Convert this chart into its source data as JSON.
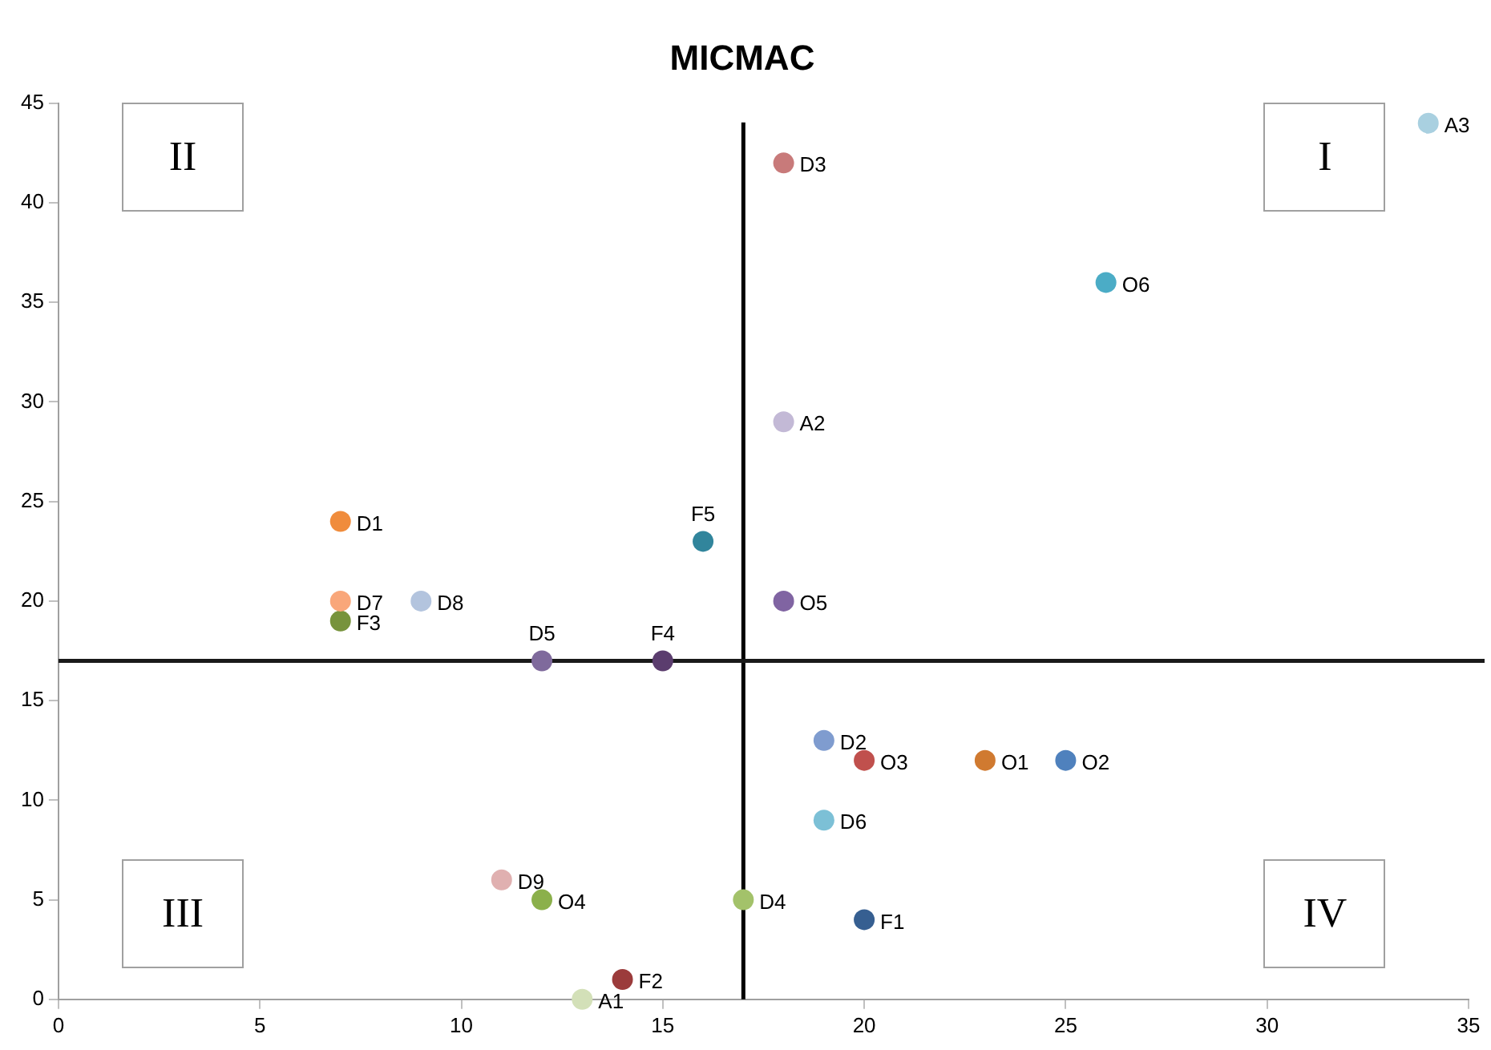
{
  "chart_data": {
    "type": "scatter",
    "title": "MICMAC",
    "xlim": [
      0,
      35
    ],
    "xticks": [
      0,
      5,
      10,
      15,
      20,
      25,
      30,
      35
    ],
    "ylim": [
      0,
      45
    ],
    "yticks": [
      0,
      5,
      10,
      15,
      20,
      25,
      30,
      35,
      40,
      45
    ],
    "grid": false,
    "legend": false,
    "marker": "circle",
    "ref_lines": [
      {
        "axis": "x",
        "value": 17,
        "color": "#000000"
      },
      {
        "axis": "y",
        "value": 17,
        "color": "#1a1a1a"
      }
    ],
    "annotations": [
      "II",
      "I",
      "III",
      "IV"
    ],
    "series": [
      {
        "name": "A3",
        "color": "#a9d0e0",
        "x": [
          34
        ],
        "values": [
          44
        ]
      },
      {
        "name": "O6",
        "color": "#4bacc6",
        "x": [
          26
        ],
        "values": [
          36
        ]
      },
      {
        "name": "D3",
        "color": "#c87a7a",
        "x": [
          18
        ],
        "values": [
          42
        ]
      },
      {
        "name": "A2",
        "color": "#c3b9d6",
        "x": [
          18
        ],
        "values": [
          29
        ]
      },
      {
        "name": "D1",
        "color": "#f08c3c",
        "x": [
          7
        ],
        "values": [
          24
        ]
      },
      {
        "name": "F5",
        "color": "#31859c",
        "x": [
          16
        ],
        "values": [
          23
        ]
      },
      {
        "name": "D7",
        "color": "#f9a77a",
        "x": [
          7
        ],
        "values": [
          20
        ]
      },
      {
        "name": "F3",
        "color": "#77933c",
        "x": [
          7
        ],
        "values": [
          19
        ]
      },
      {
        "name": "D8",
        "color": "#b3c4de",
        "x": [
          9
        ],
        "values": [
          20
        ]
      },
      {
        "name": "O5",
        "color": "#8064a2",
        "x": [
          18
        ],
        "values": [
          20
        ]
      },
      {
        "name": "D5",
        "color": "#7f6a9c",
        "x": [
          12
        ],
        "values": [
          17
        ]
      },
      {
        "name": "F4",
        "color": "#5b3d6e",
        "x": [
          15
        ],
        "values": [
          17
        ]
      },
      {
        "name": "D2",
        "color": "#7f9ccf",
        "x": [
          19
        ],
        "values": [
          13
        ]
      },
      {
        "name": "O3",
        "color": "#c0504d",
        "x": [
          20
        ],
        "values": [
          12
        ]
      },
      {
        "name": "O1",
        "color": "#d07a30",
        "x": [
          23
        ],
        "values": [
          12
        ]
      },
      {
        "name": "O2",
        "color": "#4f81bd",
        "x": [
          25
        ],
        "values": [
          12
        ]
      },
      {
        "name": "D6",
        "color": "#7cc0d6",
        "x": [
          19
        ],
        "values": [
          9
        ]
      },
      {
        "name": "D9",
        "color": "#e0b0b0",
        "x": [
          11
        ],
        "values": [
          6
        ]
      },
      {
        "name": "O4",
        "color": "#8bb04b",
        "x": [
          12
        ],
        "values": [
          5
        ]
      },
      {
        "name": "D4",
        "color": "#a3c26a",
        "x": [
          17
        ],
        "values": [
          5
        ]
      },
      {
        "name": "F1",
        "color": "#365f91",
        "x": [
          20
        ],
        "values": [
          4
        ]
      },
      {
        "name": "F2",
        "color": "#9b3b3b",
        "x": [
          14
        ],
        "values": [
          1
        ]
      },
      {
        "name": "A1",
        "color": "#d3e0b8",
        "x": [
          13
        ],
        "values": [
          0
        ]
      }
    ]
  }
}
